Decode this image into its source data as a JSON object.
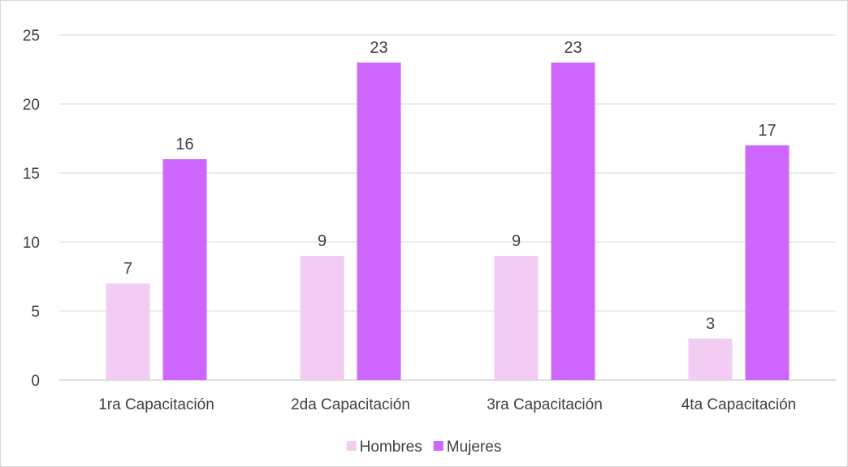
{
  "chart_data": {
    "type": "bar",
    "categories": [
      "1ra Capacitación",
      "2da Capacitación",
      "3ra Capacitación",
      "4ta Capacitación"
    ],
    "series": [
      {
        "name": "Hombres",
        "values": [
          7,
          9,
          9,
          3
        ],
        "color": "#f2ccf2"
      },
      {
        "name": "Mujeres",
        "values": [
          16,
          23,
          23,
          17
        ],
        "color": "#cc66ff"
      }
    ],
    "title": "",
    "xlabel": "",
    "ylabel": "",
    "ylim": [
      0,
      25
    ],
    "yticks": [
      0,
      5,
      10,
      15,
      20,
      25
    ],
    "grid": true,
    "legend_position": "bottom",
    "data_labels": true
  }
}
